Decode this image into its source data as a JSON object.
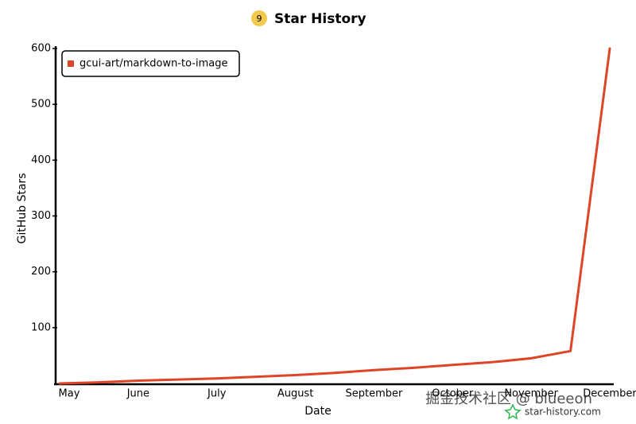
{
  "chart_data": {
    "type": "line",
    "title": "Star History",
    "badge": "9",
    "x_label": "Date",
    "y_label": "GitHub Stars",
    "categories": [
      "May",
      null,
      "June",
      null,
      "July",
      null,
      "August",
      null,
      "September",
      null,
      "October",
      null,
      "November",
      null,
      "December"
    ],
    "series": [
      {
        "name": "gcui-art/markdown-to-image",
        "color": "#dd4528",
        "values": [
          0,
          2,
          5,
          7,
          9,
          12,
          15,
          19,
          24,
          28,
          33,
          38,
          45,
          58,
          600
        ]
      }
    ],
    "ylim": [
      0,
      600
    ],
    "yticks": [
      100,
      200,
      300,
      400,
      500,
      600
    ],
    "grid": false,
    "legend": "top-left",
    "watermark": "掘金技术社区 @ blueeon",
    "source": "star-history.com"
  }
}
